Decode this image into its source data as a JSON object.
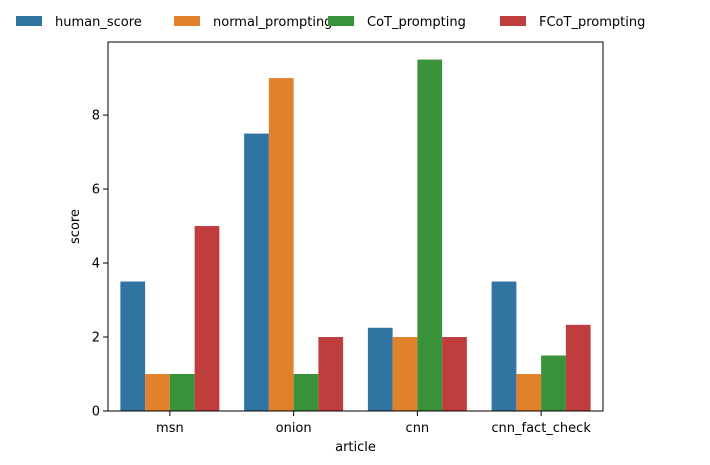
{
  "chart_data": {
    "type": "bar",
    "categories": [
      "msn",
      "onion",
      "cnn",
      "cnn_fact_check"
    ],
    "series": [
      {
        "name": "human_score",
        "color": "#3274a1",
        "values": [
          3.5,
          7.5,
          2.25,
          3.5
        ]
      },
      {
        "name": "normal_prompting",
        "color": "#e1812c",
        "values": [
          1,
          9,
          2,
          1
        ]
      },
      {
        "name": "CoT_prompting",
        "color": "#3a923a",
        "values": [
          1,
          1,
          9.5,
          1.5
        ]
      },
      {
        "name": "FCoT_prompting",
        "color": "#c03d3e",
        "values": [
          5,
          2,
          2,
          2.33
        ]
      }
    ],
    "title": "",
    "xlabel": "article",
    "ylabel": "score",
    "ylim": [
      0,
      9.975
    ],
    "yticks": [
      0,
      2,
      4,
      6,
      8
    ],
    "grid": false,
    "legend_position": "top"
  }
}
